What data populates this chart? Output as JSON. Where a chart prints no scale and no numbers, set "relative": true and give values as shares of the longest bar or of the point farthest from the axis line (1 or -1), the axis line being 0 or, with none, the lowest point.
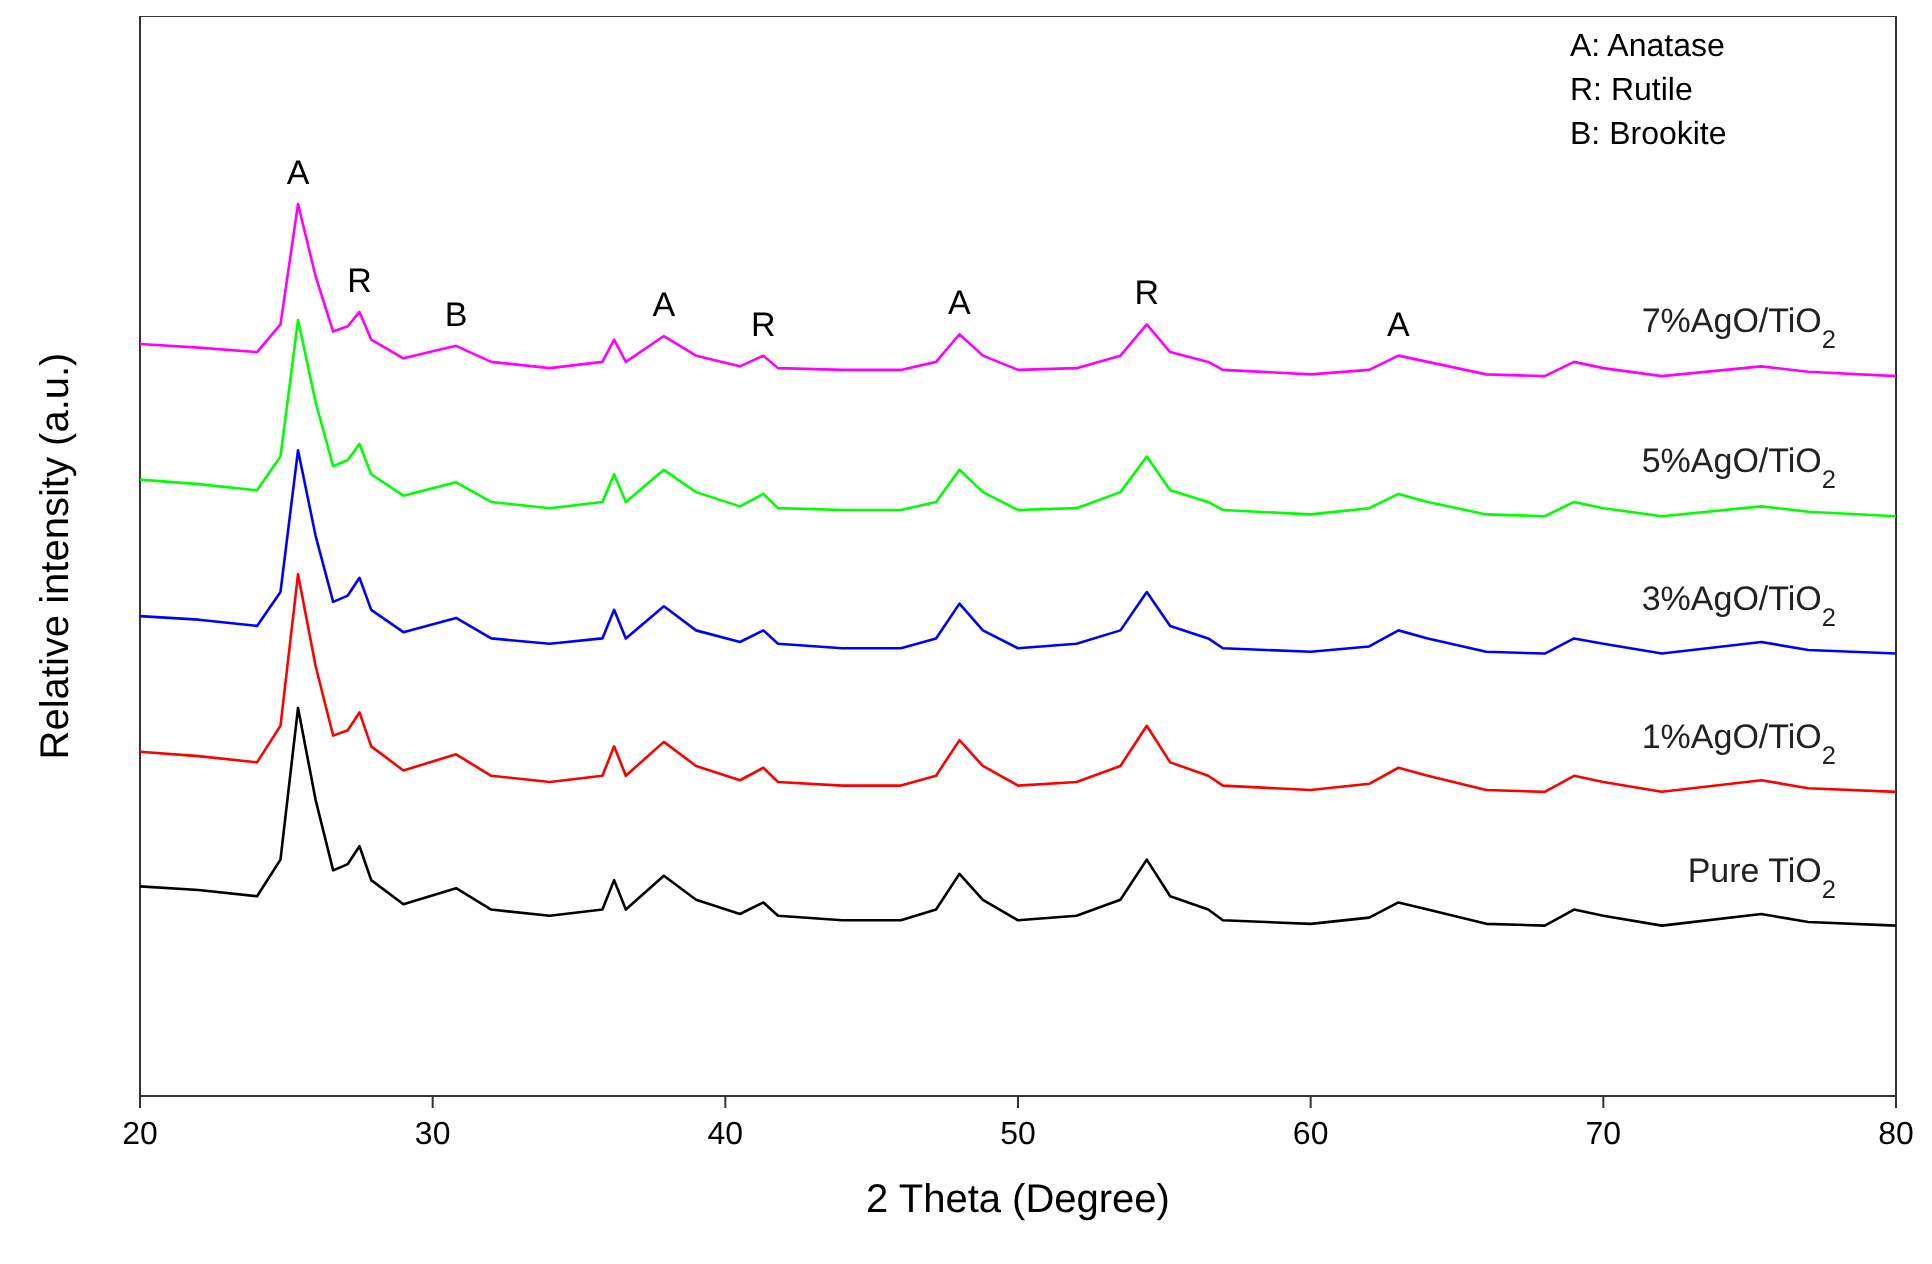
{
  "chart_data": {
    "type": "line",
    "relative": true,
    "xlabel": "2 Theta (Degree)",
    "ylabel": "Relative intensity (a.u.)",
    "xlim": [
      20,
      80
    ],
    "xticks": [
      20,
      30,
      40,
      50,
      60,
      70,
      80
    ],
    "grid": false,
    "marker": "none",
    "line_style": "solid",
    "x": [
      20,
      22,
      24,
      24.8,
      25.4,
      26,
      26.6,
      27.1,
      27.5,
      27.9,
      29,
      30.8,
      32,
      34,
      35.8,
      36.2,
      36.6,
      37.9,
      39,
      40.5,
      41.3,
      41.8,
      44,
      46,
      47.2,
      48,
      48.8,
      50,
      52,
      53.5,
      54.4,
      55.2,
      56.5,
      57,
      60,
      62,
      63,
      64,
      66,
      68,
      69,
      70,
      72,
      75.4,
      77,
      80
    ],
    "series": [
      {
        "name": "Pure TiO$_{2}$",
        "color": "#000000",
        "values": [
          0.235,
          0.231,
          0.224,
          0.265,
          0.435,
          0.332,
          0.253,
          0.26,
          0.28,
          0.242,
          0.215,
          0.233,
          0.209,
          0.202,
          0.209,
          0.242,
          0.209,
          0.247,
          0.22,
          0.204,
          0.217,
          0.202,
          0.197,
          0.197,
          0.209,
          0.249,
          0.22,
          0.197,
          0.202,
          0.22,
          0.265,
          0.224,
          0.209,
          0.197,
          0.193,
          0.2,
          0.217,
          0.209,
          0.193,
          0.191,
          0.209,
          0.202,
          0.191,
          0.204,
          0.195,
          0.191
        ]
      },
      {
        "name": "1%AgO/TiO$_{2}$",
        "color": "#ff0000",
        "values": [
          0.386,
          0.381,
          0.374,
          0.415,
          0.585,
          0.482,
          0.404,
          0.41,
          0.43,
          0.392,
          0.365,
          0.383,
          0.359,
          0.352,
          0.359,
          0.392,
          0.359,
          0.397,
          0.37,
          0.354,
          0.368,
          0.352,
          0.348,
          0.348,
          0.359,
          0.399,
          0.37,
          0.348,
          0.352,
          0.37,
          0.415,
          0.374,
          0.359,
          0.348,
          0.343,
          0.35,
          0.368,
          0.359,
          0.343,
          0.341,
          0.359,
          0.352,
          0.341,
          0.354,
          0.345,
          0.341
        ]
      },
      {
        "name": "3%AgO/TiO$_{2}$",
        "color": "#0000ff",
        "values": [
          0.538,
          0.534,
          0.527,
          0.565,
          0.724,
          0.628,
          0.554,
          0.561,
          0.581,
          0.545,
          0.52,
          0.536,
          0.513,
          0.507,
          0.513,
          0.545,
          0.513,
          0.549,
          0.522,
          0.509,
          0.522,
          0.507,
          0.502,
          0.502,
          0.513,
          0.552,
          0.522,
          0.502,
          0.507,
          0.522,
          0.565,
          0.527,
          0.513,
          0.502,
          0.498,
          0.504,
          0.522,
          0.513,
          0.498,
          0.496,
          0.513,
          0.507,
          0.496,
          0.509,
          0.5,
          0.496
        ]
      },
      {
        "name": "5%AgO/TiO$_{2}$",
        "color": "#00ff00",
        "values": [
          0.691,
          0.686,
          0.679,
          0.717,
          0.87,
          0.778,
          0.706,
          0.713,
          0.731,
          0.697,
          0.673,
          0.688,
          0.666,
          0.659,
          0.666,
          0.697,
          0.666,
          0.702,
          0.677,
          0.661,
          0.675,
          0.659,
          0.657,
          0.657,
          0.666,
          0.702,
          0.677,
          0.657,
          0.659,
          0.677,
          0.717,
          0.679,
          0.666,
          0.657,
          0.652,
          0.659,
          0.675,
          0.666,
          0.652,
          0.65,
          0.666,
          0.659,
          0.65,
          0.661,
          0.655,
          0.65
        ]
      },
      {
        "name": "7%AgO/TiO$_{2}$",
        "color": "#ff00ff",
        "values": [
          0.843,
          0.839,
          0.834,
          0.865,
          1,
          0.919,
          0.857,
          0.863,
          0.879,
          0.848,
          0.827,
          0.841,
          0.823,
          0.816,
          0.823,
          0.848,
          0.823,
          0.852,
          0.83,
          0.818,
          0.83,
          0.816,
          0.814,
          0.814,
          0.823,
          0.854,
          0.83,
          0.814,
          0.816,
          0.83,
          0.865,
          0.834,
          0.823,
          0.814,
          0.809,
          0.814,
          0.83,
          0.823,
          0.809,
          0.807,
          0.823,
          0.816,
          0.807,
          0.818,
          0.812,
          0.807
        ]
      }
    ],
    "annotations": [
      "A: Anatase",
      "R: Rutile",
      "B: Brookite",
      {
        "text": "A",
        "x": 25.4,
        "y": 1
      },
      {
        "text": "R",
        "x": 27.5,
        "y": 0.879
      },
      {
        "text": "B",
        "x": 30.8,
        "y": 0.841
      },
      {
        "text": "A",
        "x": 37.9,
        "y": 0.852
      },
      {
        "text": "R",
        "x": 41.3,
        "y": 0.83
      },
      {
        "text": "A",
        "x": 48,
        "y": 0.854
      },
      {
        "text": "R",
        "x": 54.4,
        "y": 0.865
      },
      {
        "text": "A",
        "x": 63,
        "y": 0.83
      }
    ]
  }
}
